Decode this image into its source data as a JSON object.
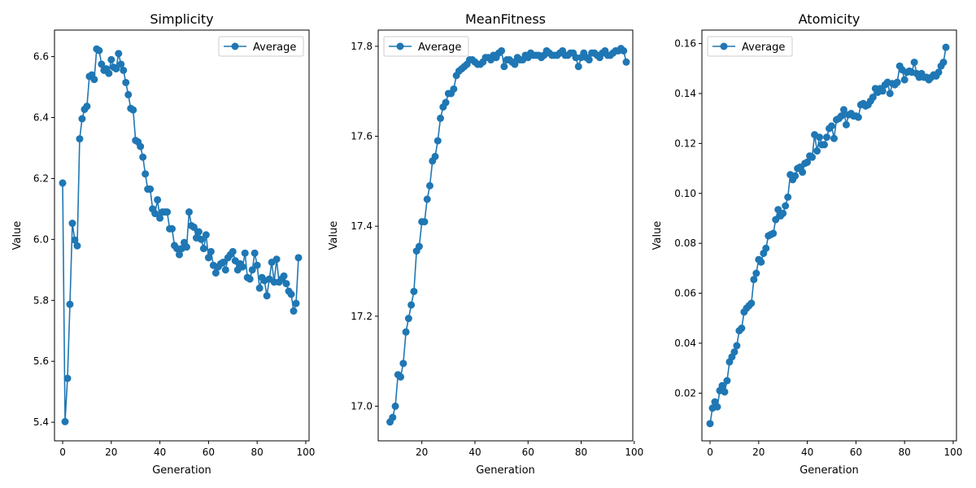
{
  "chart_data": [
    {
      "type": "line",
      "title": "Simplicity",
      "xlabel": "Generation",
      "ylabel": "Value",
      "xlim": [
        -3.35,
        101.35
      ],
      "ylim": [
        5.339,
        6.687
      ],
      "xticks": [
        0,
        20,
        40,
        60,
        80,
        100
      ],
      "yticks": [
        5.4,
        5.6,
        5.8,
        6.0,
        6.2,
        6.4,
        6.6
      ],
      "ytick_decimals": 1,
      "legend_position": "top-right",
      "series": [
        {
          "name": "Average",
          "x": [
            0,
            1,
            2,
            3,
            4,
            5,
            6,
            7,
            8,
            9,
            10,
            11,
            12,
            13,
            14,
            15,
            16,
            17,
            18,
            19,
            20,
            21,
            22,
            23,
            24,
            25,
            26,
            27,
            28,
            29,
            30,
            31,
            32,
            33,
            34,
            35,
            36,
            37,
            38,
            39,
            40,
            41,
            42,
            43,
            44,
            45,
            46,
            47,
            48,
            49,
            50,
            51,
            52,
            53,
            54,
            55,
            56,
            57,
            58,
            59,
            60,
            61,
            62,
            63,
            64,
            65,
            66,
            67,
            68,
            69,
            70,
            71,
            72,
            73,
            74,
            75,
            76,
            77,
            78,
            79,
            80,
            81,
            82,
            83,
            84,
            85,
            86,
            87,
            88,
            89,
            90,
            91,
            92,
            93,
            94,
            95,
            96,
            97
          ],
          "y": [
            6.185,
            5.402,
            5.544,
            5.787,
            6.053,
            5.998,
            5.979,
            6.33,
            6.396,
            6.427,
            6.437,
            6.535,
            6.54,
            6.525,
            6.625,
            6.62,
            6.575,
            6.555,
            6.56,
            6.545,
            6.59,
            6.565,
            6.56,
            6.61,
            6.575,
            6.555,
            6.515,
            6.475,
            6.43,
            6.425,
            6.325,
            6.32,
            6.305,
            6.27,
            6.215,
            6.165,
            6.165,
            6.1,
            6.085,
            6.13,
            6.07,
            6.09,
            6.09,
            6.09,
            6.035,
            6.035,
            5.98,
            5.97,
            5.95,
            5.97,
            5.99,
            5.975,
            6.09,
            6.045,
            6.04,
            6.005,
            6.025,
            6.0,
            5.97,
            6.015,
            5.94,
            5.96,
            5.915,
            5.89,
            5.91,
            5.92,
            5.925,
            5.9,
            5.94,
            5.95,
            5.96,
            5.93,
            5.9,
            5.92,
            5.91,
            5.955,
            5.875,
            5.87,
            5.9,
            5.955,
            5.915,
            5.84,
            5.875,
            5.865,
            5.815,
            5.87,
            5.925,
            5.86,
            5.935,
            5.86,
            5.87,
            5.88,
            5.855,
            5.83,
            5.82,
            5.765,
            5.79,
            5.94
          ]
        }
      ]
    },
    {
      "type": "line",
      "title": "MeanFitness",
      "xlabel": "Generation",
      "ylabel": "Value",
      "xlim": [
        3.55,
        99.45
      ],
      "ylim": [
        16.923,
        17.836
      ],
      "xticks": [
        20,
        40,
        60,
        80,
        100
      ],
      "yticks": [
        17.0,
        17.2,
        17.4,
        17.6,
        17.8
      ],
      "ytick_decimals": 1,
      "legend_position": "top-left",
      "series": [
        {
          "name": "Average",
          "x": [
            8,
            9,
            10,
            11,
            12,
            13,
            14,
            15,
            16,
            17,
            18,
            19,
            20,
            21,
            22,
            23,
            24,
            25,
            26,
            27,
            28,
            29,
            30,
            31,
            32,
            33,
            34,
            35,
            36,
            37,
            38,
            39,
            40,
            41,
            42,
            43,
            44,
            45,
            46,
            47,
            48,
            49,
            50,
            51,
            52,
            53,
            54,
            55,
            56,
            57,
            58,
            59,
            60,
            61,
            62,
            63,
            64,
            65,
            66,
            67,
            68,
            69,
            70,
            71,
            72,
            73,
            74,
            75,
            76,
            77,
            78,
            79,
            80,
            81,
            82,
            83,
            84,
            85,
            86,
            87,
            88,
            89,
            90,
            91,
            92,
            93,
            94,
            95,
            96,
            97
          ],
          "y": [
            16.965,
            16.975,
            17.0,
            17.07,
            17.065,
            17.095,
            17.165,
            17.195,
            17.225,
            17.255,
            17.345,
            17.355,
            17.41,
            17.41,
            17.46,
            17.49,
            17.545,
            17.555,
            17.59,
            17.64,
            17.665,
            17.675,
            17.695,
            17.695,
            17.705,
            17.735,
            17.745,
            17.75,
            17.755,
            17.76,
            17.77,
            17.77,
            17.765,
            17.76,
            17.76,
            17.765,
            17.775,
            17.775,
            17.77,
            17.78,
            17.775,
            17.785,
            17.79,
            17.755,
            17.77,
            17.77,
            17.765,
            17.76,
            17.775,
            17.77,
            17.77,
            17.78,
            17.775,
            17.785,
            17.78,
            17.78,
            17.78,
            17.775,
            17.78,
            17.79,
            17.785,
            17.78,
            17.78,
            17.78,
            17.785,
            17.79,
            17.78,
            17.78,
            17.785,
            17.785,
            17.775,
            17.755,
            17.775,
            17.785,
            17.775,
            17.77,
            17.785,
            17.785,
            17.78,
            17.775,
            17.785,
            17.79,
            17.78,
            17.78,
            17.785,
            17.79,
            17.79,
            17.795,
            17.79,
            17.765
          ]
        }
      ]
    },
    {
      "type": "line",
      "title": "Atomicity",
      "xlabel": "Generation",
      "ylabel": "Value",
      "xlim": [
        -3.35,
        101.35
      ],
      "ylim": [
        0.0009,
        0.1654
      ],
      "xticks": [
        0,
        20,
        40,
        60,
        80,
        100
      ],
      "yticks": [
        0.02,
        0.04,
        0.06,
        0.08,
        0.1,
        0.12,
        0.14,
        0.16
      ],
      "ytick_decimals": 2,
      "legend_position": "top-left",
      "series": [
        {
          "name": "Average",
          "x": [
            0,
            1,
            2,
            3,
            4,
            5,
            6,
            7,
            8,
            9,
            10,
            11,
            12,
            13,
            14,
            15,
            16,
            17,
            18,
            19,
            20,
            21,
            22,
            23,
            24,
            25,
            26,
            27,
            28,
            29,
            30,
            31,
            32,
            33,
            34,
            35,
            36,
            37,
            38,
            39,
            40,
            41,
            42,
            43,
            44,
            45,
            46,
            47,
            48,
            49,
            50,
            51,
            52,
            53,
            54,
            55,
            56,
            57,
            58,
            59,
            60,
            61,
            62,
            63,
            64,
            65,
            66,
            67,
            68,
            69,
            70,
            71,
            72,
            73,
            74,
            75,
            76,
            77,
            78,
            79,
            80,
            81,
            82,
            83,
            84,
            85,
            86,
            87,
            88,
            89,
            90,
            91,
            92,
            93,
            94,
            95,
            96,
            97
          ],
          "y": [
            0.0078,
            0.014,
            0.0165,
            0.0145,
            0.021,
            0.023,
            0.0205,
            0.025,
            0.0325,
            0.0345,
            0.0365,
            0.039,
            0.045,
            0.046,
            0.0525,
            0.054,
            0.055,
            0.056,
            0.0655,
            0.068,
            0.0735,
            0.0725,
            0.076,
            0.078,
            0.083,
            0.0835,
            0.084,
            0.0895,
            0.0935,
            0.091,
            0.092,
            0.095,
            0.0985,
            0.1075,
            0.1055,
            0.107,
            0.11,
            0.1105,
            0.1085,
            0.112,
            0.1125,
            0.115,
            0.1145,
            0.1235,
            0.117,
            0.1225,
            0.1195,
            0.1195,
            0.1225,
            0.126,
            0.127,
            0.122,
            0.1295,
            0.13,
            0.131,
            0.1335,
            0.1275,
            0.1315,
            0.132,
            0.131,
            0.131,
            0.1305,
            0.1355,
            0.136,
            0.135,
            0.1355,
            0.137,
            0.1385,
            0.142,
            0.1405,
            0.142,
            0.141,
            0.1435,
            0.1445,
            0.14,
            0.144,
            0.1435,
            0.1445,
            0.151,
            0.1495,
            0.1455,
            0.1485,
            0.149,
            0.1485,
            0.1525,
            0.148,
            0.1465,
            0.148,
            0.1465,
            0.1465,
            0.1455,
            0.1465,
            0.1475,
            0.147,
            0.1485,
            0.151,
            0.1525,
            0.1585
          ]
        }
      ]
    }
  ]
}
